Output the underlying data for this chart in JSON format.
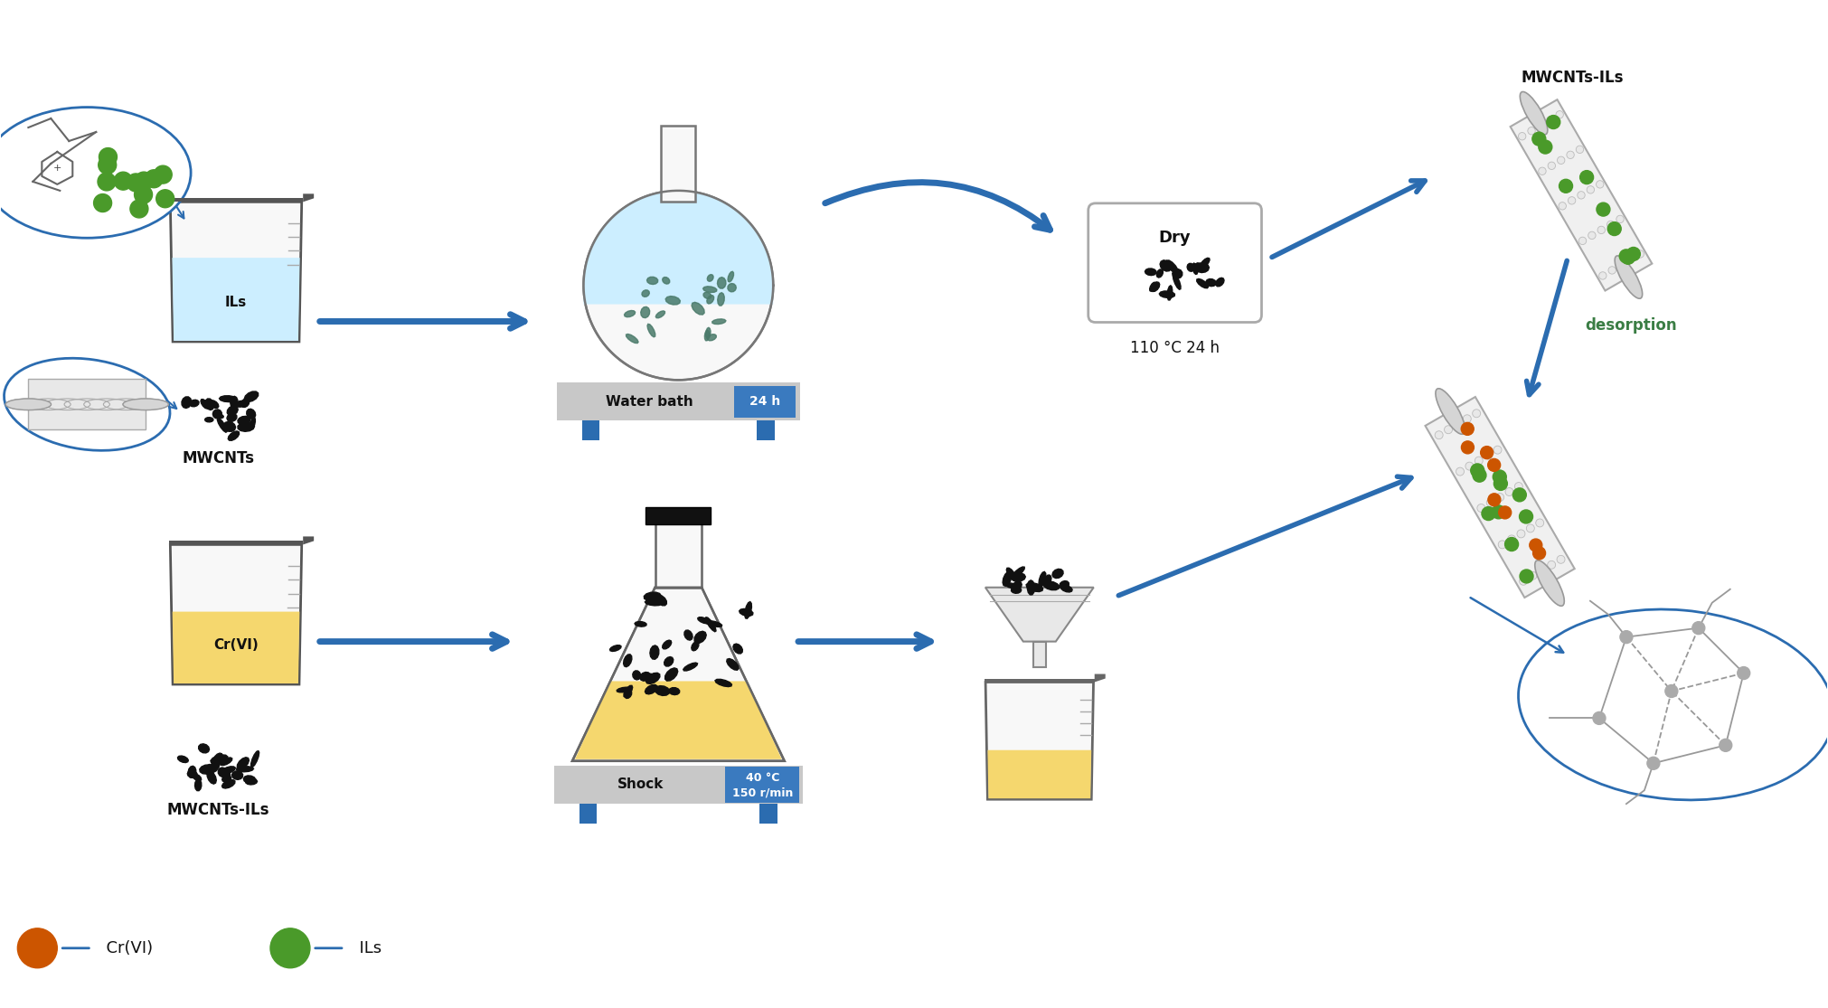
{
  "background_color": "#ffffff",
  "arrow_color": "#2b6cb0",
  "desorption_color": "#3a7d44",
  "label_water_bath": "Water bath",
  "label_24h": "24 h",
  "label_shock": "Shock",
  "label_shock_temp": "40 °C",
  "label_shock_rpm": "150 r/min",
  "label_dry": "Dry",
  "label_dry_temp": "110 °C 24 h",
  "label_ILs": "ILs",
  "label_MWCNTs": "MWCNTs",
  "label_CrVI": "Cr(VI)",
  "label_MWCNTs_ILs_bottom": "MWCNTs-ILs",
  "label_MWCNTs_ILs_top": "MWCNTs-ILs",
  "label_desorption": "desorption",
  "legend_CrVI": "  Cr(VI)",
  "legend_ILs": "  ILs",
  "water_bath_label_bg": "#3a7abf",
  "liquid_cyan": "#cceeff",
  "liquid_yellow": "#f5d76e",
  "gray_label_bg": "#b0b0b0",
  "green_il": "#4a9a2a",
  "orange_cr": "#cc5500",
  "blue_outline": "#2b6cb0",
  "text_color_dark": "#111111"
}
